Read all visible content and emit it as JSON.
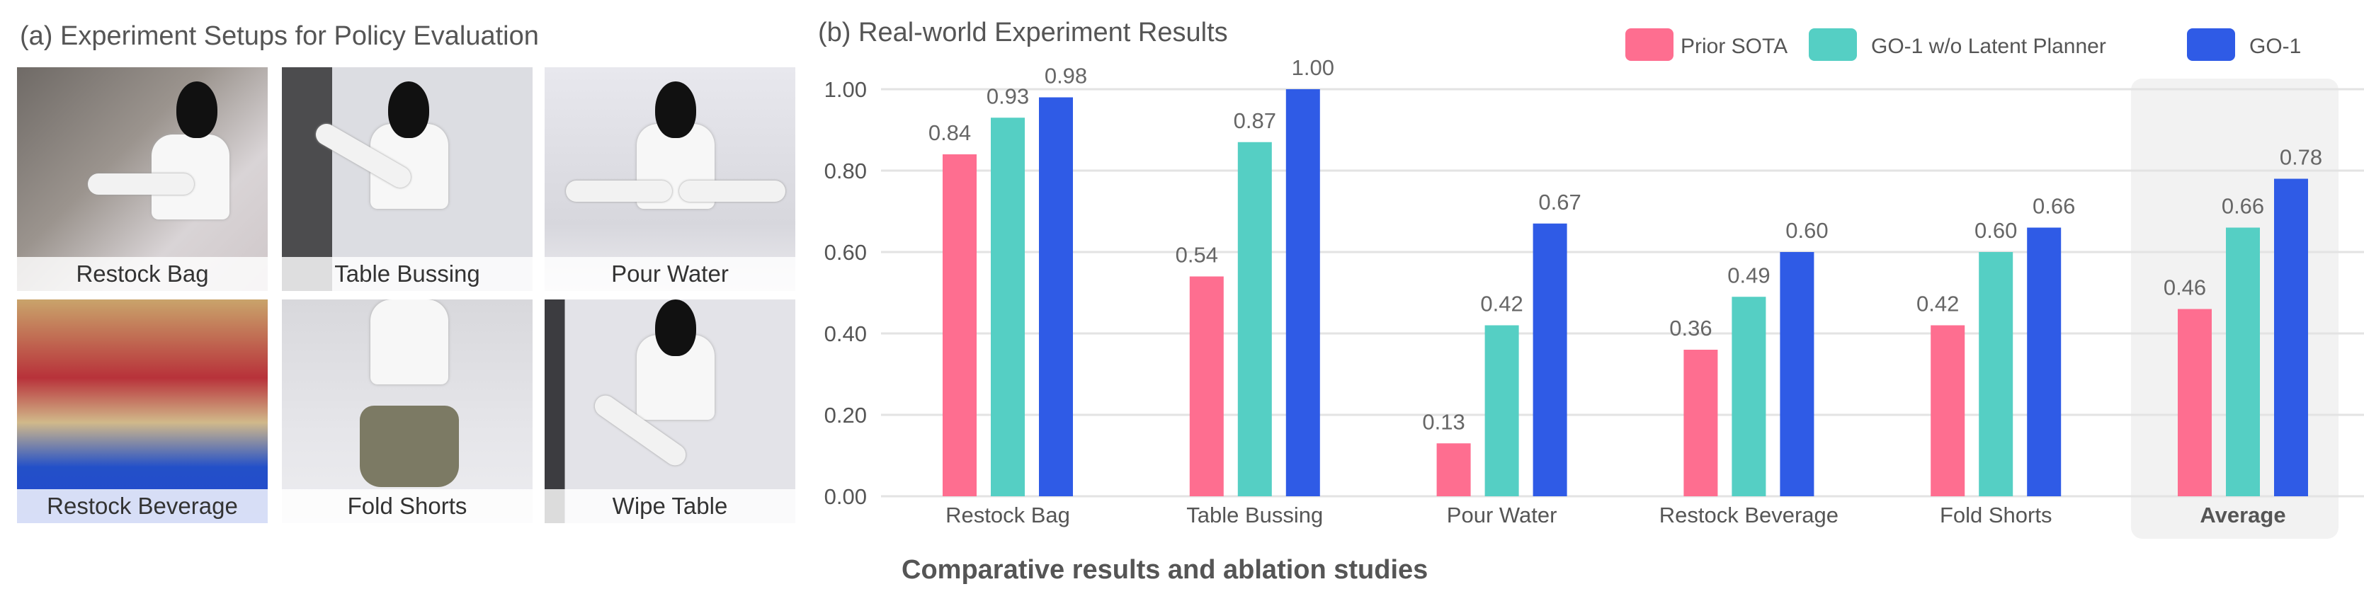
{
  "left_panel": {
    "title": "(a) Experiment Setups for Policy Evaluation",
    "tiles": [
      {
        "label": "Restock Bag"
      },
      {
        "label": "Table Bussing"
      },
      {
        "label": "Pour Water"
      },
      {
        "label": "Restock Beverage"
      },
      {
        "label": "Fold Shorts"
      },
      {
        "label": "Wipe Table"
      }
    ]
  },
  "caption": "Comparative results and ablation studies",
  "chart_data": {
    "type": "bar",
    "title": "(b) Real-world Experiment Results",
    "categories": [
      "Restock Bag",
      "Table Bussing",
      "Pour Water",
      "Restock Beverage",
      "Fold Shorts",
      "Average"
    ],
    "highlighted_category": "Average",
    "series": [
      {
        "name": "Prior SOTA",
        "color": "#fe6e90",
        "values": [
          0.84,
          0.54,
          0.13,
          0.36,
          0.42,
          0.46
        ],
        "labels": [
          "0.84",
          "0.54",
          "0.13",
          "0.36",
          "0.42",
          "0.46"
        ]
      },
      {
        "name": "GO-1 w/o Latent Planner",
        "color": "#55cfc4",
        "values": [
          0.93,
          0.87,
          0.42,
          0.49,
          0.6,
          0.66
        ],
        "labels": [
          "0.93",
          "0.87",
          "0.42",
          "0.49",
          "0.60",
          "0.66"
        ]
      },
      {
        "name": "GO-1",
        "color": "#2f5be6",
        "values": [
          0.98,
          1.0,
          0.67,
          0.6,
          0.66,
          0.78
        ],
        "labels": [
          "0.98",
          "1.00",
          "0.67",
          "0.60",
          "0.66",
          "0.78"
        ]
      }
    ],
    "yticks": [
      "0.00",
      "0.20",
      "0.40",
      "0.60",
      "0.80",
      "1.00"
    ],
    "ylim": [
      0,
      1.0
    ],
    "grid": true,
    "legend": "top-right",
    "xlabel": "",
    "ylabel": ""
  }
}
